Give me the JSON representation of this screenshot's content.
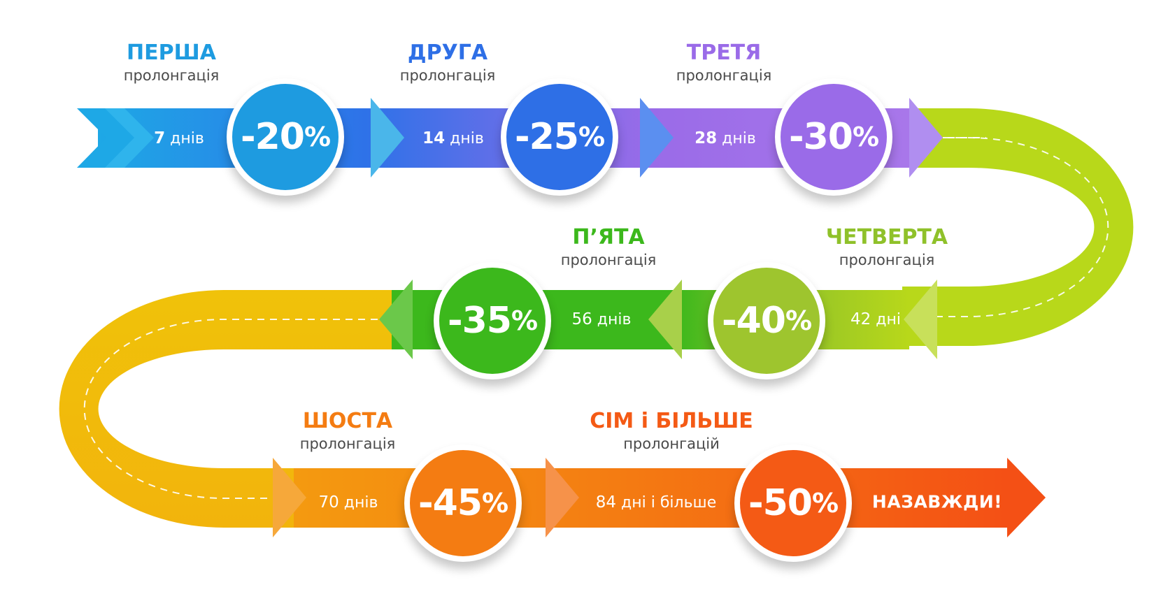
{
  "colors": {
    "blue1": "#1e9be0",
    "blue2": "#2e72e8",
    "purple": "#9a6be8",
    "lime": "#b8d81a",
    "lime_circle": "#9ec52e",
    "green": "#39b81a",
    "yellow": "#f0c20a",
    "orange": "#f47c12",
    "red_orange": "#f45a15"
  },
  "steps": [
    {
      "title": "ПЕРША",
      "subtitle": "пролонгація",
      "days_num": "7",
      "days_unit": "днів",
      "discount_num": "-20",
      "discount_pct": "%",
      "color": "#1e9be0"
    },
    {
      "title": "ДРУГА",
      "subtitle": "пролонгація",
      "days_num": "14",
      "days_unit": "днів",
      "discount_num": "-25",
      "discount_pct": "%",
      "color": "#2e6fe6"
    },
    {
      "title": "ТРЕТЯ",
      "subtitle": "пролонгація",
      "days_num": "28",
      "days_unit": "днів",
      "discount_num": "-30",
      "discount_pct": "%",
      "color": "#9a6be8"
    },
    {
      "title": "ЧЕТВЕРТА",
      "subtitle": "пролонгація",
      "days_num": "42",
      "days_unit": "дні",
      "discount_num": "-40",
      "discount_pct": "%",
      "color": "#9ec52e"
    },
    {
      "title": "П’ЯТА",
      "subtitle": "пролонгація",
      "days_num": "56",
      "days_unit": "днів",
      "discount_num": "-35",
      "discount_pct": "%",
      "color": "#3cb81c"
    },
    {
      "title": "ШОСТА",
      "subtitle": "пролонгація",
      "days_num": "70",
      "days_unit": "днів",
      "discount_num": "-45",
      "discount_pct": "%",
      "color": "#f47c12"
    },
    {
      "title": "СІМ і БІЛЬШЕ",
      "subtitle": "пролонгацій",
      "days_num": "84",
      "days_unit": "дні і більше",
      "discount_num": "-50",
      "discount_pct": "%",
      "color": "#f45a15"
    }
  ],
  "final_label": "НАЗАВЖДИ!"
}
